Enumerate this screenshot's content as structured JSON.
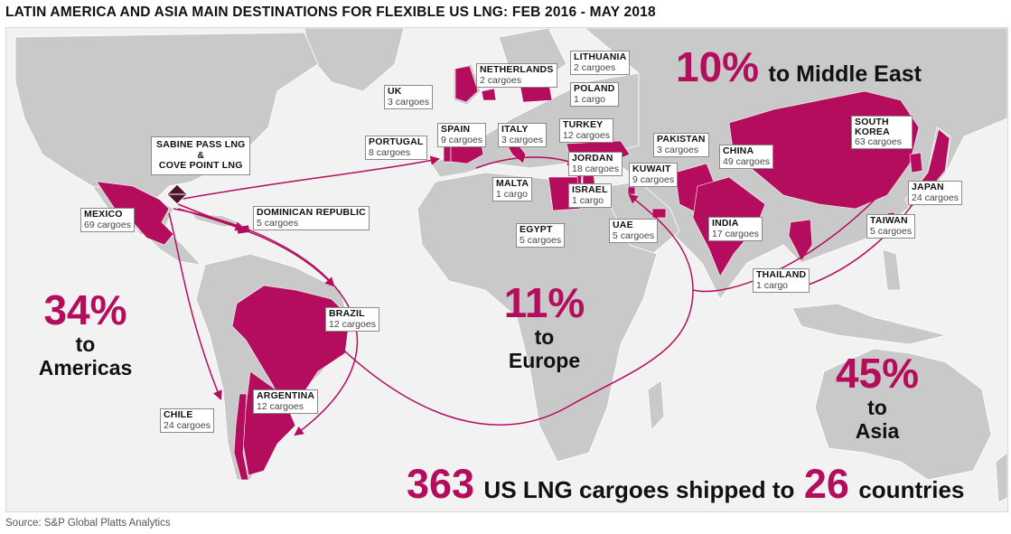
{
  "title": "LATIN AMERICA AND ASIA MAIN DESTINATIONS FOR FLEXIBLE US LNG: FEB 2016 - MAY 2018",
  "source": "Source: S&P Global Platts Analytics",
  "colors": {
    "highlight": "#b50d5d",
    "land": "#c9c9c9",
    "sea": "#f2f2f2",
    "arrow": "#b50d5d",
    "origin": "#4a1430"
  },
  "origin": {
    "line1": "SABINE PASS LNG",
    "line2": "&",
    "line3": "COVE POINT LNG"
  },
  "destinations": [
    {
      "id": "mexico",
      "name": "MEXICO",
      "cargoes": "69 cargoes"
    },
    {
      "id": "dominican-republic",
      "name": "DOMINICAN REPUBLIC",
      "cargoes": "5 cargoes"
    },
    {
      "id": "brazil",
      "name": "BRAZIL",
      "cargoes": "12 cargoes"
    },
    {
      "id": "argentina",
      "name": "ARGENTINA",
      "cargoes": "12 cargoes"
    },
    {
      "id": "chile",
      "name": "CHILE",
      "cargoes": "24 cargoes"
    },
    {
      "id": "uk",
      "name": "UK",
      "cargoes": "3 cargoes"
    },
    {
      "id": "netherlands",
      "name": "NETHERLANDS",
      "cargoes": "2 cargoes"
    },
    {
      "id": "lithuania",
      "name": "LITHUANIA",
      "cargoes": "2 cargoes"
    },
    {
      "id": "poland",
      "name": "POLAND",
      "cargoes": "1 cargo"
    },
    {
      "id": "portugal",
      "name": "PORTUGAL",
      "cargoes": "8 cargoes"
    },
    {
      "id": "spain",
      "name": "SPAIN",
      "cargoes": "9 cargoes"
    },
    {
      "id": "italy",
      "name": "ITALY",
      "cargoes": "3 cargoes"
    },
    {
      "id": "turkey",
      "name": "TURKEY",
      "cargoes": "12 cargoes"
    },
    {
      "id": "malta",
      "name": "MALTA",
      "cargoes": "1 cargo"
    },
    {
      "id": "jordan",
      "name": "JORDAN",
      "cargoes": "18 cargoes"
    },
    {
      "id": "israel",
      "name": "ISRAEL",
      "cargoes": "1 cargo"
    },
    {
      "id": "egypt",
      "name": "EGYPT",
      "cargoes": "5 cargoes"
    },
    {
      "id": "kuwait",
      "name": "KUWAIT",
      "cargoes": "9 cargoes"
    },
    {
      "id": "uae",
      "name": "UAE",
      "cargoes": "5 cargoes"
    },
    {
      "id": "pakistan",
      "name": "PAKISTAN",
      "cargoes": "3 cargoes"
    },
    {
      "id": "india",
      "name": "INDIA",
      "cargoes": "17 cargoes"
    },
    {
      "id": "china",
      "name": "CHINA",
      "cargoes": "49 cargoes"
    },
    {
      "id": "south-korea",
      "name": "SOUTH KOREA",
      "cargoes": "63 cargoes"
    },
    {
      "id": "japan",
      "name": "JAPAN",
      "cargoes": "24 cargoes"
    },
    {
      "id": "taiwan",
      "name": "TAIWAN",
      "cargoes": "5 cargoes"
    },
    {
      "id": "thailand",
      "name": "THAILAND",
      "cargoes": "1 cargo"
    }
  ],
  "shares": {
    "middle_east": {
      "pct": "10%",
      "text": "to Middle East"
    },
    "americas": {
      "pct": "34%",
      "to": "to",
      "region": "Americas"
    },
    "europe": {
      "pct": "11%",
      "to": "to",
      "region": "Europe"
    },
    "asia": {
      "pct": "45%",
      "to": "to",
      "region": "Asia"
    }
  },
  "summary": {
    "cargoes": "363",
    "text_mid": "US LNG cargoes shipped to",
    "countries": "26",
    "text_end": "countries"
  }
}
